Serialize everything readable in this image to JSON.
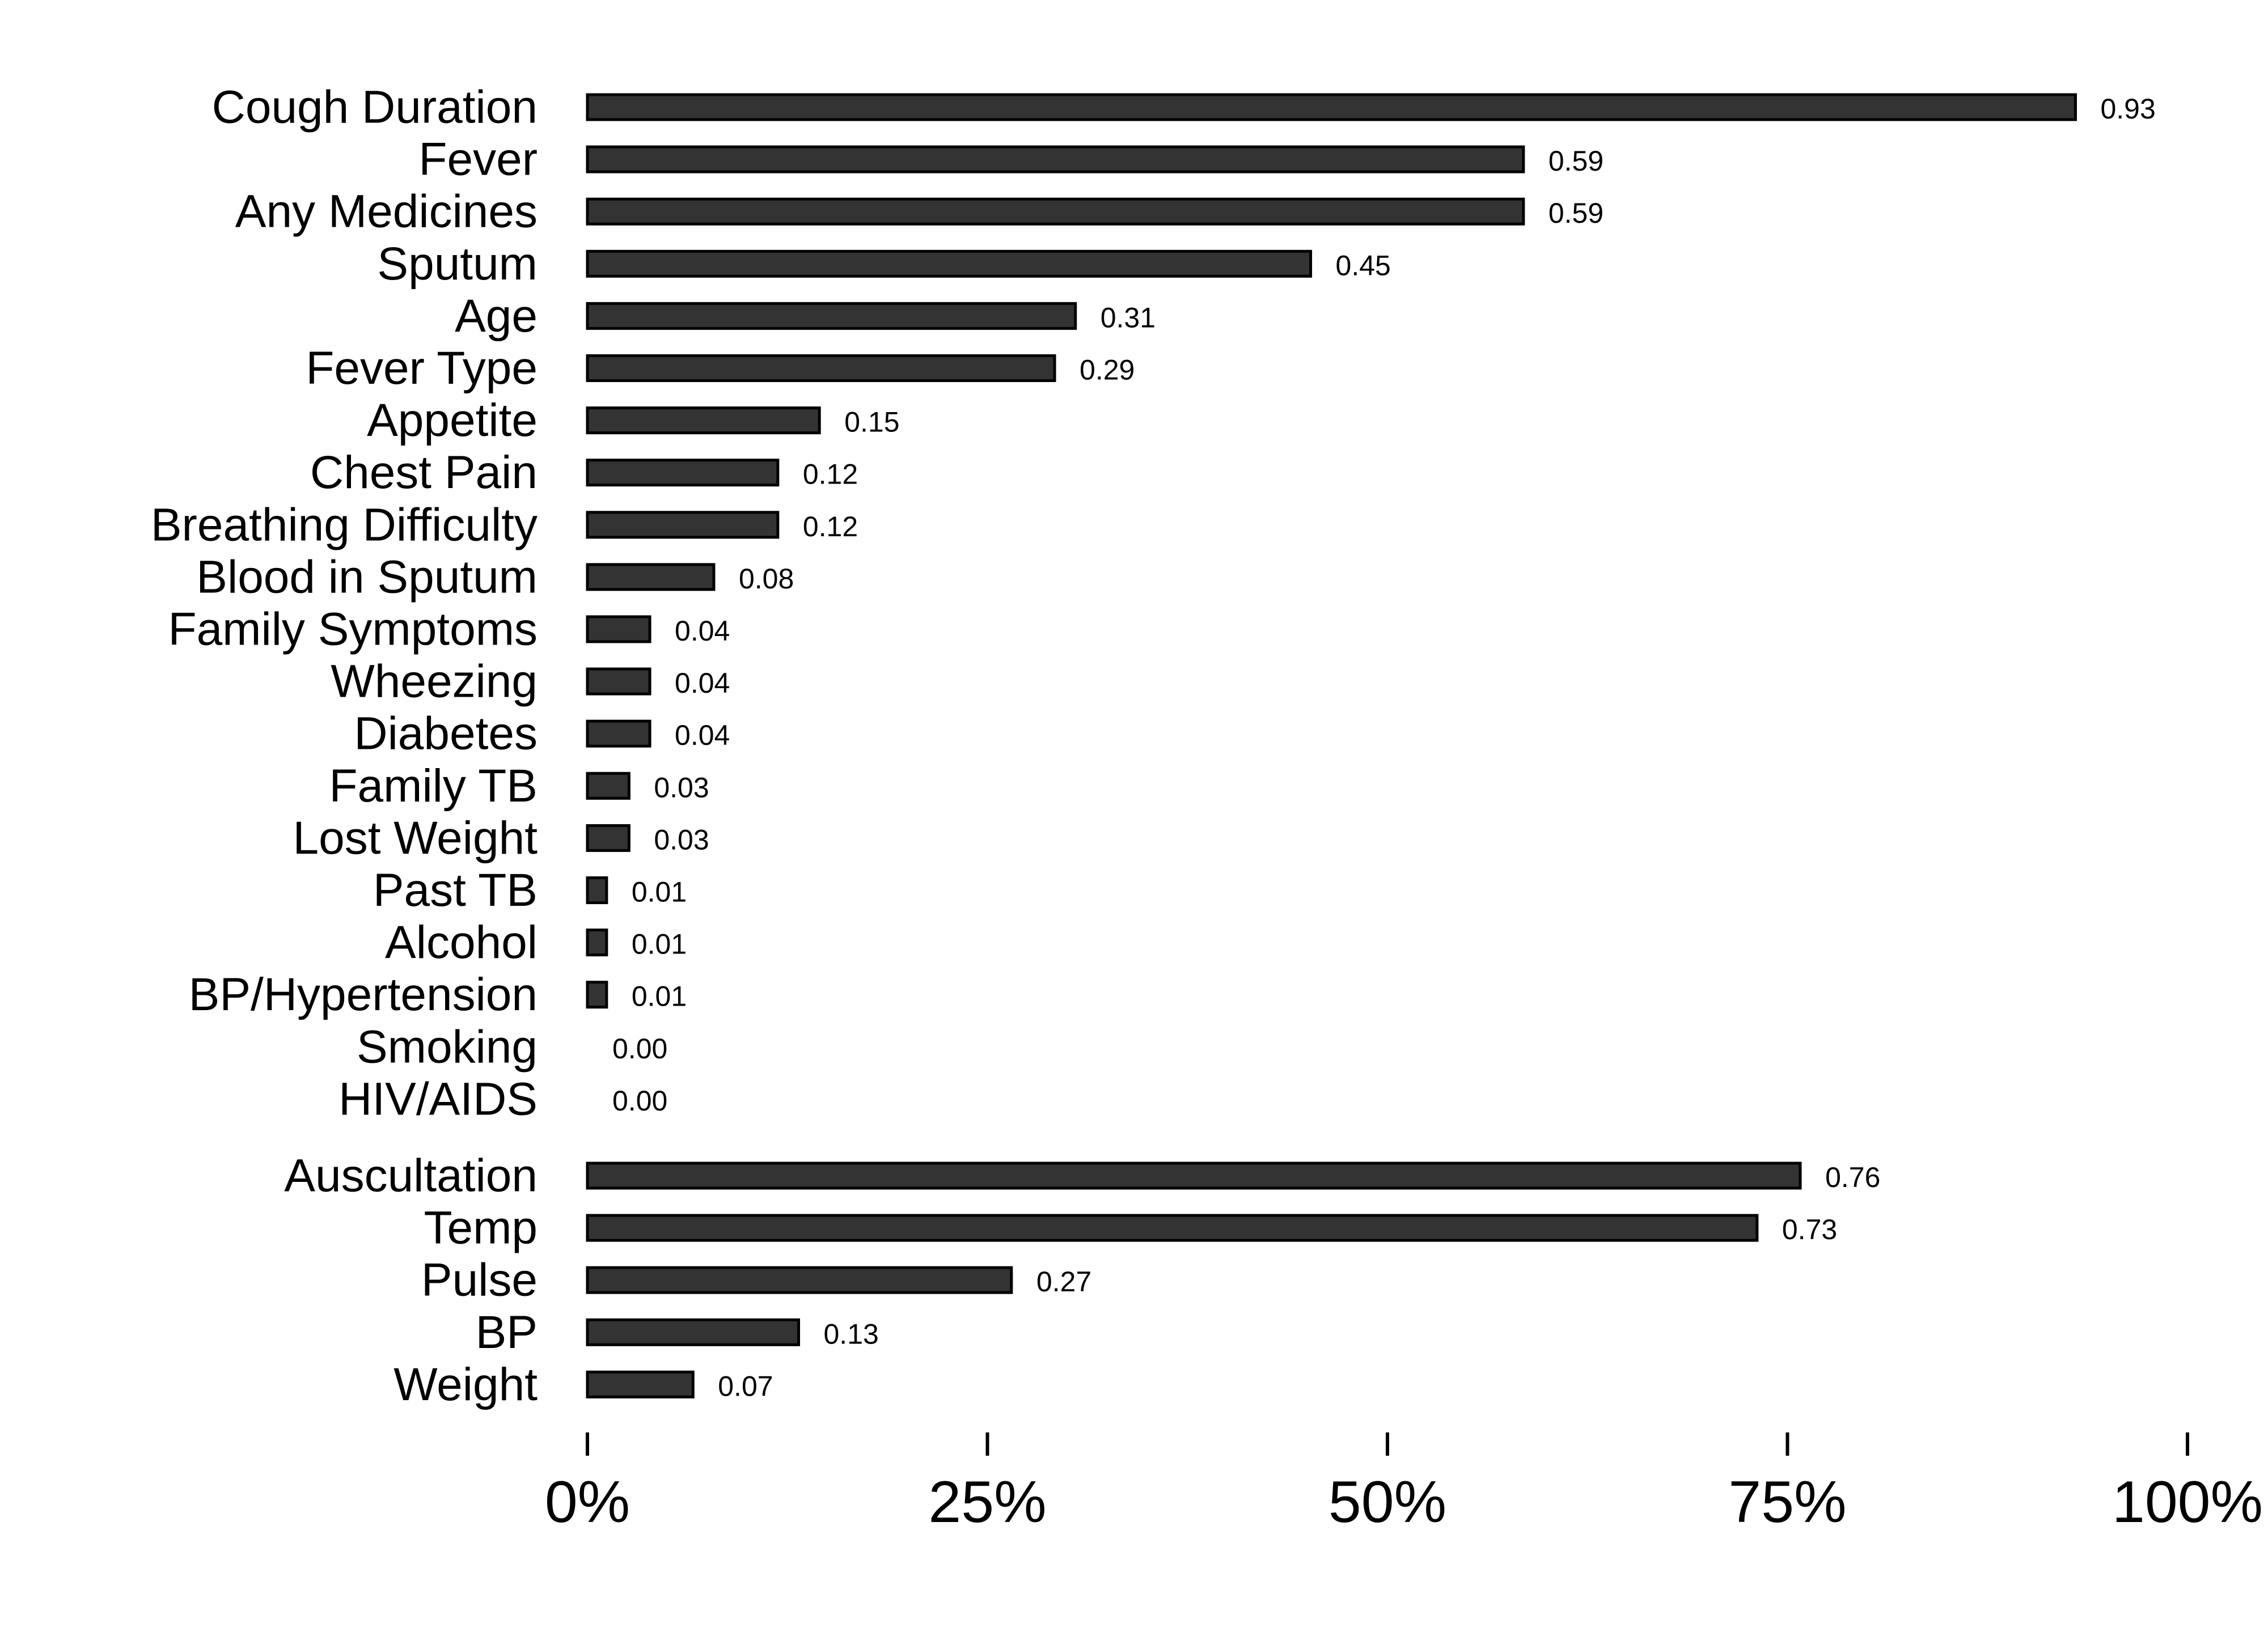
{
  "chart_data": {
    "type": "bar",
    "orientation": "horizontal",
    "bar_color": "#333333",
    "xlim": [
      0,
      1
    ],
    "x_ticks": [
      0,
      0.25,
      0.5,
      0.75,
      1
    ],
    "x_tick_labels": [
      "0%",
      "25%",
      "50%",
      "75%",
      "100%"
    ],
    "groups": [
      {
        "categories": [
          "Cough Duration",
          "Fever",
          "Any Medicines",
          "Sputum",
          "Age",
          "Fever Type",
          "Appetite",
          "Chest Pain",
          "Breathing Difficulty",
          "Blood in Sputum",
          "Family Symptoms",
          "Wheezing",
          "Diabetes",
          "Family TB",
          "Lost Weight",
          "Past TB",
          "Alcohol",
          "BP/Hypertension",
          "Smoking",
          "HIV/AIDS"
        ],
        "values": [
          0.93,
          0.585,
          0.585,
          0.452,
          0.305,
          0.292,
          0.145,
          0.119,
          0.119,
          0.079,
          0.039,
          0.039,
          0.039,
          0.026,
          0.026,
          0.012,
          0.012,
          0.012,
          0.0,
          0.0
        ],
        "value_labels": [
          "0.93",
          "0.59",
          "0.59",
          "0.45",
          "0.31",
          "0.29",
          "0.15",
          "0.12",
          "0.12",
          "0.08",
          "0.04",
          "0.04",
          "0.04",
          "0.03",
          "0.03",
          "0.01",
          "0.01",
          "0.01",
          "0.00",
          "0.00"
        ]
      },
      {
        "categories": [
          "Auscultation",
          "Temp",
          "Pulse",
          "BP",
          "Weight"
        ],
        "values": [
          0.758,
          0.731,
          0.265,
          0.132,
          0.066
        ],
        "value_labels": [
          "0.76",
          "0.73",
          "0.27",
          "0.13",
          "0.07"
        ]
      }
    ]
  }
}
